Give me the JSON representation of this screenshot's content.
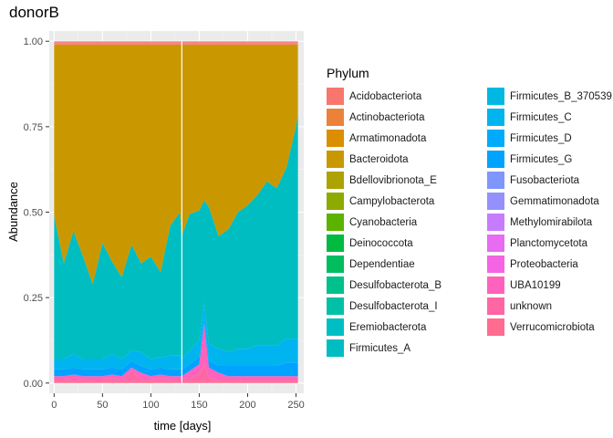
{
  "chart_data": {
    "type": "area",
    "title": "donorB",
    "xlabel": "time [days]",
    "ylabel": "Abundance",
    "xlim": [
      -5,
      258
    ],
    "ylim": [
      -0.03,
      1.03
    ],
    "x_ticks": [
      0,
      50,
      100,
      150,
      200,
      250
    ],
    "y_ticks": [
      0.0,
      0.25,
      0.5,
      0.75,
      1.0
    ],
    "y_tick_labels": [
      "0.00",
      "0.25",
      "0.50",
      "0.75",
      "1.00"
    ],
    "grid": true,
    "stacked": true,
    "legend_title": "Phylum",
    "legend_position": "right",
    "x": [
      0,
      10,
      20,
      30,
      40,
      50,
      60,
      70,
      80,
      90,
      100,
      110,
      120,
      130,
      132,
      140,
      150,
      155,
      160,
      170,
      180,
      190,
      200,
      210,
      220,
      230,
      240,
      250,
      252
    ],
    "series": [
      {
        "name": "Acidobacteriota",
        "color": "#F8766D",
        "values": [
          0,
          0,
          0,
          0,
          0,
          0,
          0,
          0,
          0,
          0,
          0,
          0,
          0,
          0,
          0,
          0,
          0,
          0,
          0,
          0,
          0,
          0,
          0,
          0,
          0,
          0,
          0,
          0,
          0
        ]
      },
      {
        "name": "Actinobacteriota",
        "color": "#EC8239",
        "values": [
          0,
          0,
          0,
          0,
          0,
          0,
          0,
          0,
          0,
          0,
          0,
          0,
          0,
          0,
          0,
          0,
          0,
          0,
          0,
          0,
          0,
          0,
          0,
          0,
          0,
          0,
          0,
          0,
          0
        ]
      },
      {
        "name": "Armatimonadota",
        "color": "#DB8E00",
        "values": [
          0,
          0,
          0,
          0,
          0,
          0,
          0,
          0,
          0,
          0,
          0,
          0,
          0,
          0,
          0,
          0,
          0,
          0,
          0,
          0,
          0,
          0,
          0,
          0,
          0,
          0,
          0,
          0,
          0
        ]
      },
      {
        "name": "Bacteroidota",
        "color": "#C99800",
        "values": [
          0,
          0,
          0,
          0,
          0,
          0,
          0,
          0,
          0,
          0,
          0,
          0,
          0,
          0,
          0,
          0,
          0,
          0,
          0,
          0,
          0,
          0,
          0,
          0,
          0,
          0,
          0,
          0,
          0
        ]
      },
      {
        "name": "Bdellovibrionota_E",
        "color": "#AEA200",
        "values": [
          0,
          0,
          0,
          0,
          0,
          0,
          0,
          0,
          0,
          0,
          0,
          0,
          0,
          0,
          0,
          0,
          0,
          0,
          0,
          0,
          0,
          0,
          0,
          0,
          0,
          0,
          0,
          0,
          0
        ]
      },
      {
        "name": "Campylobacterota",
        "color": "#8DAA00",
        "values": [
          0,
          0,
          0,
          0,
          0,
          0,
          0,
          0,
          0,
          0,
          0,
          0,
          0,
          0,
          0,
          0,
          0,
          0,
          0,
          0,
          0,
          0,
          0,
          0,
          0,
          0,
          0,
          0,
          0
        ]
      },
      {
        "name": "Cyanobacteria",
        "color": "#5BB300",
        "values": [
          0,
          0,
          0,
          0,
          0,
          0,
          0,
          0,
          0,
          0,
          0,
          0,
          0,
          0,
          0,
          0,
          0,
          0,
          0,
          0,
          0,
          0,
          0,
          0,
          0,
          0,
          0,
          0,
          0
        ]
      },
      {
        "name": "Deinococcota",
        "color": "#00BA42",
        "values": [
          0,
          0,
          0,
          0,
          0,
          0,
          0,
          0,
          0,
          0,
          0,
          0,
          0,
          0,
          0,
          0,
          0,
          0,
          0,
          0,
          0,
          0,
          0,
          0,
          0,
          0,
          0,
          0,
          0
        ]
      },
      {
        "name": "Dependentiae",
        "color": "#00BD5F",
        "values": [
          0,
          0,
          0,
          0,
          0,
          0,
          0,
          0,
          0,
          0,
          0,
          0,
          0,
          0,
          0,
          0,
          0,
          0,
          0,
          0,
          0,
          0,
          0,
          0,
          0,
          0,
          0,
          0,
          0
        ]
      },
      {
        "name": "Desulfobacterota_B",
        "color": "#00C08B",
        "values": [
          0,
          0,
          0,
          0,
          0,
          0,
          0,
          0,
          0,
          0,
          0,
          0,
          0,
          0,
          0,
          0,
          0,
          0,
          0,
          0,
          0,
          0,
          0,
          0,
          0,
          0,
          0,
          0,
          0
        ]
      },
      {
        "name": "Desulfobacterota_I",
        "color": "#00C1A7",
        "values": [
          0,
          0,
          0,
          0,
          0,
          0,
          0,
          0,
          0,
          0,
          0,
          0,
          0,
          0,
          0,
          0,
          0,
          0,
          0,
          0,
          0,
          0,
          0,
          0,
          0,
          0,
          0,
          0,
          0
        ]
      },
      {
        "name": "Eremiobacterota",
        "color": "#00BFC4",
        "values": [
          0,
          0,
          0,
          0,
          0,
          0,
          0,
          0,
          0,
          0,
          0,
          0,
          0,
          0,
          0,
          0,
          0,
          0,
          0,
          0,
          0,
          0,
          0,
          0,
          0,
          0,
          0,
          0,
          0
        ]
      },
      {
        "name": "Firmicutes_A",
        "color": "#00BDC2",
        "values": [
          0.42,
          0.28,
          0.36,
          0.3,
          0.22,
          0.34,
          0.27,
          0.24,
          0.31,
          0.26,
          0.3,
          0.25,
          0.38,
          0.42,
          0.36,
          0.4,
          0.38,
          0.3,
          0.4,
          0.33,
          0.36,
          0.4,
          0.42,
          0.44,
          0.48,
          0.46,
          0.5,
          0.62,
          0.66
        ]
      },
      {
        "name": "Firmicutes_B_370539",
        "color": "#00B9E3",
        "values": [
          0,
          0,
          0,
          0,
          0,
          0,
          0,
          0,
          0,
          0,
          0,
          0,
          0,
          0,
          0,
          0,
          0,
          0,
          0,
          0,
          0,
          0,
          0,
          0,
          0,
          0,
          0,
          0,
          0
        ]
      },
      {
        "name": "Firmicutes_C",
        "color": "#00B4EF",
        "values": [
          0.03,
          0.03,
          0.04,
          0.03,
          0.03,
          0.03,
          0.04,
          0.03,
          0.03,
          0.04,
          0.03,
          0.03,
          0.04,
          0.04,
          0.03,
          0.04,
          0.05,
          0.04,
          0.05,
          0.05,
          0.04,
          0.05,
          0.05,
          0.06,
          0.06,
          0.06,
          0.07,
          0.07,
          0.07
        ]
      },
      {
        "name": "Firmicutes_D",
        "color": "#00ABFD",
        "values": [
          0,
          0,
          0,
          0,
          0,
          0,
          0,
          0,
          0,
          0,
          0,
          0,
          0,
          0,
          0,
          0,
          0,
          0,
          0,
          0,
          0,
          0,
          0,
          0,
          0,
          0,
          0,
          0,
          0
        ]
      },
      {
        "name": "Firmicutes_G",
        "color": "#00A3FF",
        "values": [
          0.02,
          0.02,
          0.02,
          0.02,
          0.02,
          0.02,
          0.02,
          0.02,
          0.02,
          0.02,
          0.02,
          0.02,
          0.02,
          0.02,
          0.02,
          0.02,
          0.02,
          0.02,
          0.02,
          0.02,
          0.03,
          0.03,
          0.03,
          0.03,
          0.03,
          0.03,
          0.04,
          0.04,
          0.04
        ]
      },
      {
        "name": "Fusobacteriota",
        "color": "#7F96FF",
        "values": [
          0,
          0,
          0,
          0,
          0,
          0,
          0,
          0,
          0,
          0,
          0,
          0,
          0,
          0,
          0,
          0,
          0,
          0,
          0,
          0,
          0,
          0,
          0,
          0,
          0,
          0,
          0,
          0,
          0
        ]
      },
      {
        "name": "Gemmatimonadota",
        "color": "#9590FF",
        "values": [
          0,
          0,
          0,
          0,
          0,
          0,
          0,
          0,
          0,
          0,
          0,
          0,
          0,
          0,
          0,
          0,
          0,
          0,
          0,
          0,
          0,
          0,
          0,
          0,
          0,
          0,
          0,
          0,
          0
        ]
      },
      {
        "name": "Methylomirabilota",
        "color": "#C77CFF",
        "values": [
          0,
          0,
          0,
          0,
          0,
          0,
          0,
          0,
          0,
          0,
          0,
          0,
          0,
          0,
          0,
          0,
          0,
          0,
          0,
          0,
          0,
          0,
          0,
          0,
          0,
          0,
          0,
          0,
          0
        ]
      },
      {
        "name": "Planctomycetota",
        "color": "#E76BF3",
        "values": [
          0,
          0,
          0,
          0,
          0,
          0,
          0,
          0,
          0,
          0,
          0,
          0,
          0,
          0,
          0,
          0,
          0,
          0,
          0,
          0,
          0,
          0,
          0,
          0,
          0,
          0,
          0,
          0,
          0
        ]
      },
      {
        "name": "Proteobacteria",
        "color": "#F564E3",
        "values": [
          0,
          0,
          0,
          0,
          0,
          0,
          0,
          0,
          0,
          0,
          0,
          0,
          0,
          0,
          0,
          0,
          0,
          0,
          0,
          0,
          0,
          0,
          0,
          0,
          0,
          0,
          0,
          0,
          0
        ]
      },
      {
        "name": "UBA10199",
        "color": "#FF62BC",
        "values": [
          0.01,
          0.01,
          0.01,
          0.01,
          0.01,
          0.01,
          0.01,
          0.01,
          0.01,
          0.02,
          0.01,
          0.01,
          0.01,
          0.01,
          0.01,
          0.02,
          0.03,
          0.12,
          0.03,
          0.02,
          0.01,
          0.01,
          0.01,
          0.01,
          0.01,
          0.01,
          0.01,
          0.01,
          0.01
        ]
      },
      {
        "name": "unknown",
        "color": "#FF67A4",
        "values": [
          0.005,
          0.005,
          0.01,
          0.005,
          0.005,
          0.005,
          0.01,
          0.005,
          0.03,
          0.005,
          0.005,
          0.01,
          0.005,
          0.005,
          0.005,
          0.01,
          0.02,
          0.05,
          0.01,
          0.005,
          0.005,
          0.005,
          0.005,
          0.005,
          0.005,
          0.005,
          0.005,
          0.005,
          0.005
        ]
      },
      {
        "name": "Verrucomicrobiota",
        "color": "#FF6C90",
        "values": [
          0.005,
          0.005,
          0.005,
          0.005,
          0.005,
          0.005,
          0.005,
          0.005,
          0.005,
          0.005,
          0.005,
          0.005,
          0.005,
          0.005,
          0.005,
          0.005,
          0.005,
          0.005,
          0.005,
          0.005,
          0.005,
          0.005,
          0.005,
          0.005,
          0.005,
          0.005,
          0.005,
          0.005,
          0.005
        ]
      }
    ],
    "bacteroidota_fills_to": 0.99,
    "top_band_color": "#F8766D"
  }
}
